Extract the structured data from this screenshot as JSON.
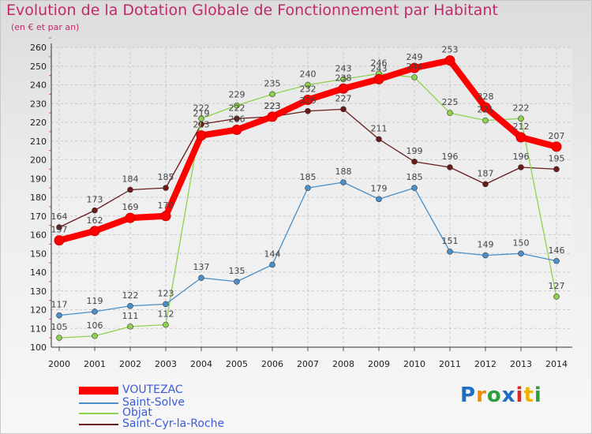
{
  "chart_data": {
    "type": "line",
    "title": "Evolution de la Dotation Globale de Fonctionnement par Habitant",
    "subtitle": "(en € et par an)",
    "xlabel": "",
    "ylabel": "",
    "categories": [
      "2000",
      "2001",
      "2002",
      "2003",
      "2004",
      "2005",
      "2006",
      "2007",
      "2008",
      "2009",
      "2010",
      "2011",
      "2012",
      "2013",
      "2014"
    ],
    "ylim": [
      100,
      260
    ],
    "yticks": [
      100,
      110,
      120,
      130,
      140,
      150,
      160,
      170,
      180,
      190,
      200,
      210,
      220,
      230,
      240,
      250,
      260
    ],
    "grid": true,
    "legend_position": "bottom-left",
    "series": [
      {
        "name": "Saint-Cyr-la-Roche",
        "color": "#6b1a1a",
        "values": [
          164,
          173,
          184,
          185,
          219,
          222,
          223,
          226,
          227,
          211,
          199,
          196,
          187,
          196,
          195
        ]
      },
      {
        "name": "Objat",
        "color": "#8fd14f",
        "values": [
          105,
          106,
          111,
          112,
          222,
          229,
          235,
          240,
          243,
          246,
          244,
          225,
          221,
          222,
          127
        ]
      },
      {
        "name": "Saint-Solve",
        "color": "#4a8fc8",
        "values": [
          117,
          119,
          122,
          123,
          137,
          135,
          144,
          185,
          188,
          179,
          185,
          151,
          149,
          150,
          146
        ]
      },
      {
        "name": "VOUTEZAC",
        "color": "#ff0000",
        "values": [
          157,
          162,
          169,
          170,
          213,
          216,
          223,
          232,
          238,
          243,
          249,
          253,
          228,
          212,
          207
        ]
      }
    ]
  },
  "legend": [
    {
      "label": "VOUTEZAC",
      "color": "#ff0000",
      "text_color": "#3b5bdb"
    },
    {
      "label": "Saint-Solve",
      "color": "#4a8fc8",
      "text_color": "#3b5bdb"
    },
    {
      "label": "Objat",
      "color": "#8fd14f",
      "text_color": "#3b5bdb"
    },
    {
      "label": "Saint-Cyr-la-Roche",
      "color": "#6b1a1a",
      "text_color": "#3b5bdb"
    }
  ],
  "logo": {
    "letters": [
      "P",
      "r",
      "o",
      "x",
      "i",
      "t",
      "i"
    ],
    "colors": [
      "#1f6fc0",
      "#f08a00",
      "#2e9e3e",
      "#1f6fc0",
      "#d62b2b",
      "#f0b400",
      "#2e9e3e"
    ]
  }
}
